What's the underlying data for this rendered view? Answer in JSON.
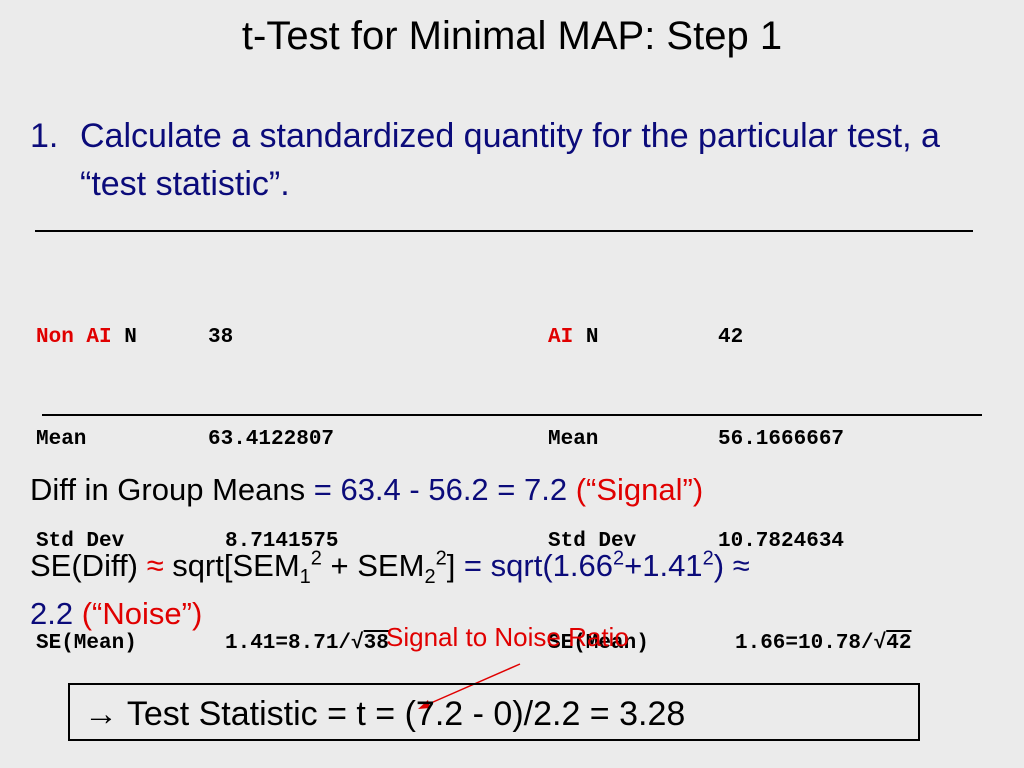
{
  "title": "t-Test for Minimal MAP: Step 1",
  "step": {
    "number": "1.",
    "text": "Calculate a standardized quantity for the particular test, a “test statistic”."
  },
  "table": {
    "left": {
      "group_label": "Non AI",
      "n_label": "N",
      "n_value": "38",
      "mean_label": "Mean",
      "mean_value": "63.4122807",
      "sd_label": "Std Dev",
      "sd_value": "8.7141575",
      "se_label": "SE(Mean)",
      "se_expr": "1.41=8.71/√",
      "se_root": "38"
    },
    "right": {
      "group_label": "AI",
      "n_label": "N",
      "n_value": "42",
      "mean_label": "Mean",
      "mean_value": "56.1666667",
      "sd_label": "Std Dev",
      "sd_value": "10.7824634",
      "se_label": "SE(Mean)",
      "se_expr": "1.66=10.78/√",
      "se_root": "42"
    }
  },
  "diff": {
    "label": "Diff in Group Means",
    "eq": " = 63.4 - 56.2 = 7.2 ",
    "tag": "(“Signal”)"
  },
  "sediff": {
    "label": "SE(Diff) ",
    "approx1": "≈",
    "formula_a": " sqrt[SEM",
    "sub1": "1",
    "sup1": "2",
    "formula_b": " + SEM",
    "sub2": "2",
    "sup2": "2",
    "formula_c": "]",
    "eq_a": " = sqrt(1.66",
    "sup3": "2",
    "eq_b": "+1.41",
    "sup4": "2",
    "eq_c": ") ≈",
    "result": "2.2 ",
    "tag": "(“Noise”)"
  },
  "annotation": "Signal to Noise Ratio",
  "statistic": "→ Test Statistic = t = (7.2 - 0)/2.2 = 3.28"
}
